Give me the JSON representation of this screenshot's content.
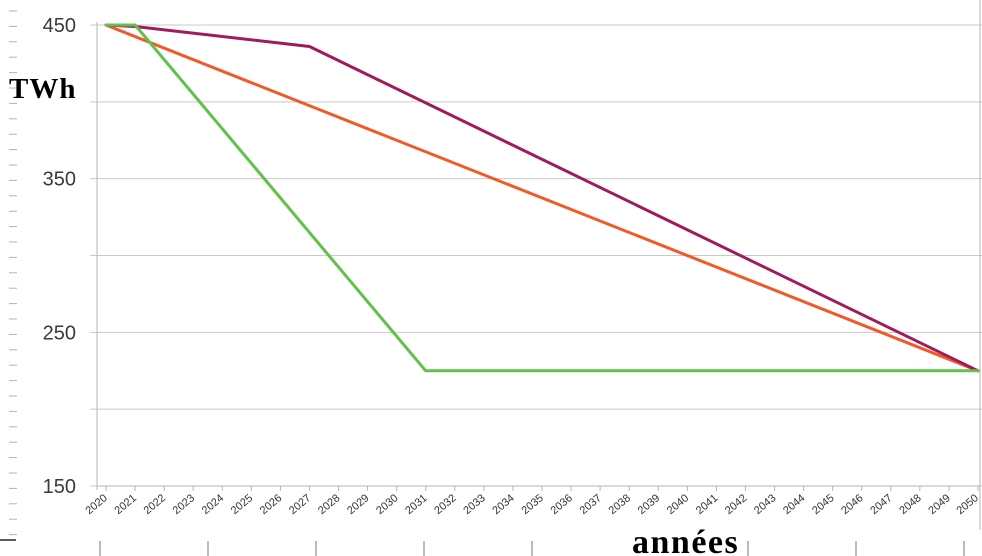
{
  "chart_data": {
    "type": "line",
    "ylabel": "TWh",
    "xlabel": "années",
    "ylim": [
      150,
      450
    ],
    "yticks": [
      450,
      350,
      250,
      150
    ],
    "xlim": [
      2020,
      2050
    ],
    "xticks": [
      "2020",
      "2021",
      "2022",
      "2023",
      "2024",
      "2025",
      "2026",
      "2027",
      "2028",
      "2029",
      "2030",
      "2031",
      "2032",
      "2033",
      "2034",
      "2035",
      "2036",
      "2037",
      "2038",
      "2039",
      "2040",
      "2041",
      "2042",
      "2043",
      "2044",
      "2045",
      "2046",
      "2047",
      "2048",
      "2049",
      "2050"
    ],
    "grid": true,
    "legend": "none",
    "series": [
      {
        "color": "#f15a28",
        "x": [
          2020,
          2050
        ],
        "y": [
          450,
          225
        ]
      },
      {
        "color": "#a01b5c",
        "x": [
          2020,
          2021,
          2027,
          2050
        ],
        "y": [
          450,
          449,
          436,
          225
        ]
      },
      {
        "color": "#5fc24a",
        "x": [
          2020,
          2021,
          2031,
          2050
        ],
        "y": [
          450,
          450,
          225,
          225
        ]
      }
    ]
  }
}
